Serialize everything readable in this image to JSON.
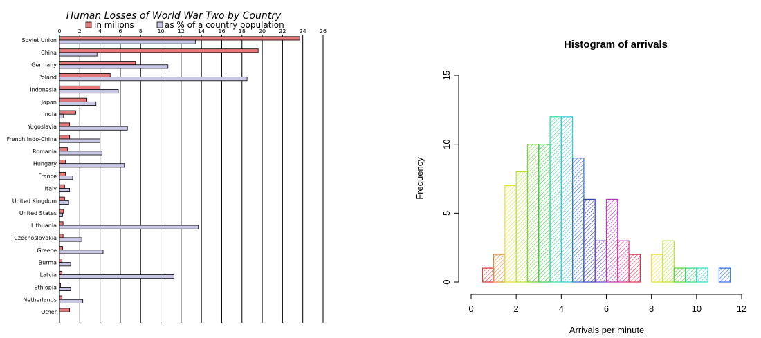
{
  "chart_data": [
    {
      "type": "bar",
      "orientation": "horizontal",
      "title": "Human Losses of World War Two by Country",
      "legend_position": "top",
      "grid": true,
      "xlim": [
        0,
        26
      ],
      "xticks": [
        0,
        2,
        4,
        6,
        8,
        10,
        12,
        14,
        16,
        18,
        20,
        22,
        24,
        26
      ],
      "categories": [
        "Soviet Union",
        "China",
        "Germany",
        "Poland",
        "Indonesia",
        "Japan",
        "India",
        "Yugoslavia",
        "French Indo-China",
        "Romania",
        "Hungary",
        "France",
        "Italy",
        "United Kingdom",
        "United States",
        "Lithuania",
        "Czechoslovakia",
        "Greece",
        "Burma",
        "Latvia",
        "Ethiopia",
        "Netherlands",
        "Other"
      ],
      "series": [
        {
          "name": "in milions",
          "color": "#e67a7a",
          "values": [
            23.7,
            19.6,
            7.5,
            5.0,
            4.0,
            2.7,
            1.6,
            1.0,
            1.0,
            0.8,
            0.6,
            0.6,
            0.5,
            0.5,
            0.4,
            0.35,
            0.35,
            0.3,
            0.25,
            0.25,
            0.1,
            0.25,
            1.0
          ]
        },
        {
          "name": "as % of a country population",
          "color": "#c8c8e6",
          "values": [
            13.4,
            3.7,
            10.7,
            18.5,
            5.8,
            3.6,
            0.4,
            6.7,
            4.0,
            4.2,
            6.4,
            1.3,
            1.0,
            0.9,
            0.3,
            13.7,
            2.2,
            4.3,
            1.1,
            11.3,
            1.1,
            2.3,
            0.0
          ]
        }
      ]
    },
    {
      "type": "histogram",
      "title": "Histogram of arrivals",
      "xlabel": "Arrivals per minute",
      "ylabel": "Frequency",
      "xlim": [
        0,
        12
      ],
      "ylim": [
        0,
        15
      ],
      "xticks": [
        "0",
        "2",
        "4",
        "6",
        "8",
        "10",
        "12"
      ],
      "yticks": [
        "0",
        "5",
        "10",
        "15"
      ],
      "bin_width": 0.5,
      "bins": [
        {
          "x0": 0.5,
          "x1": 1.0,
          "count": 1,
          "color": "#e03030"
        },
        {
          "x0": 1.0,
          "x1": 1.5,
          "count": 2,
          "color": "#e88a30"
        },
        {
          "x0": 1.5,
          "x1": 2.0,
          "count": 7,
          "color": "#e6e030"
        },
        {
          "x0": 2.0,
          "x1": 2.5,
          "count": 8,
          "color": "#b8e030"
        },
        {
          "x0": 2.5,
          "x1": 3.0,
          "count": 10,
          "color": "#70d830"
        },
        {
          "x0": 3.0,
          "x1": 3.5,
          "count": 10,
          "color": "#30d040"
        },
        {
          "x0": 3.5,
          "x1": 4.0,
          "count": 12,
          "color": "#30d8a0"
        },
        {
          "x0": 4.0,
          "x1": 4.5,
          "count": 12,
          "color": "#30c8e0"
        },
        {
          "x0": 4.5,
          "x1": 5.0,
          "count": 9,
          "color": "#3070e0"
        },
        {
          "x0": 5.0,
          "x1": 5.5,
          "count": 6,
          "color": "#3040c0"
        },
        {
          "x0": 5.5,
          "x1": 6.0,
          "count": 3,
          "color": "#7040d0"
        },
        {
          "x0": 6.0,
          "x1": 6.5,
          "count": 6,
          "color": "#c030c0"
        },
        {
          "x0": 6.5,
          "x1": 7.0,
          "count": 3,
          "color": "#d830a0"
        },
        {
          "x0": 7.0,
          "x1": 7.5,
          "count": 2,
          "color": "#e03050"
        },
        {
          "x0": 8.0,
          "x1": 8.5,
          "count": 2,
          "color": "#e6e030"
        },
        {
          "x0": 8.5,
          "x1": 9.0,
          "count": 3,
          "color": "#b8e030"
        },
        {
          "x0": 9.0,
          "x1": 9.5,
          "count": 1,
          "color": "#50d830"
        },
        {
          "x0": 9.5,
          "x1": 10.0,
          "count": 1,
          "color": "#30d870"
        },
        {
          "x0": 10.0,
          "x1": 10.5,
          "count": 1,
          "color": "#30d8c0"
        },
        {
          "x0": 11.0,
          "x1": 11.5,
          "count": 1,
          "color": "#3070e0"
        }
      ]
    }
  ]
}
